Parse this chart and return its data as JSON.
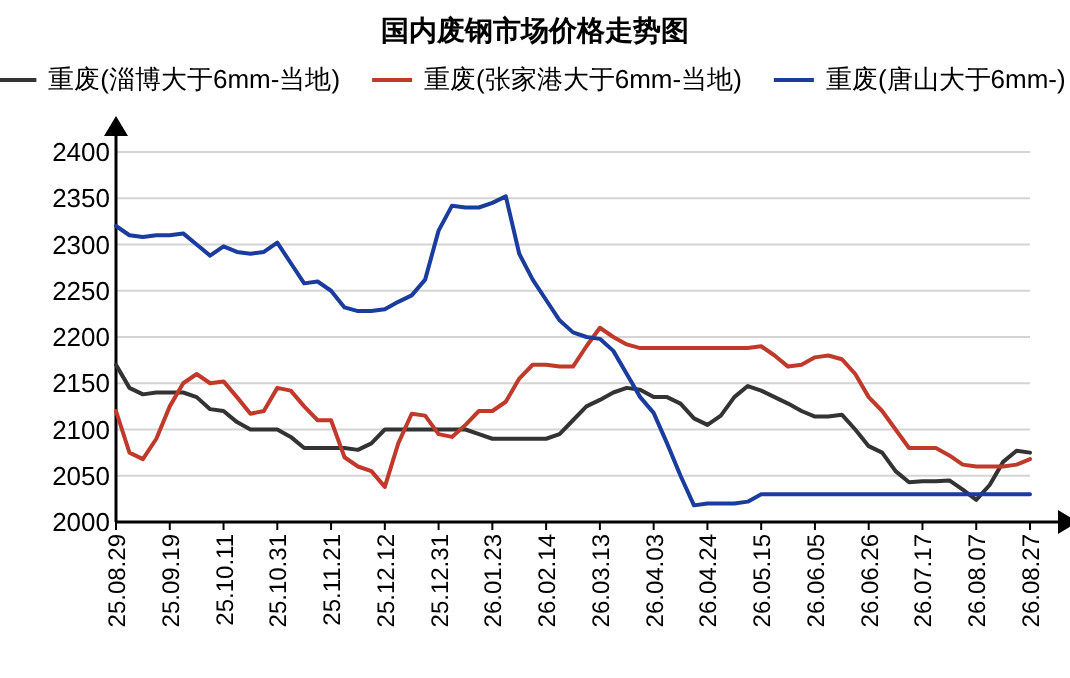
{
  "chart_data": {
    "type": "line",
    "title": "国内废钢市场价格走势图",
    "categories": [
      "25.08.29",
      null,
      null,
      null,
      "25.09.19",
      null,
      null,
      null,
      "25.10.11",
      null,
      null,
      null,
      "25.10.31",
      null,
      null,
      null,
      "25.11.21",
      null,
      null,
      null,
      "25.12.12",
      null,
      null,
      null,
      "25.12.31",
      null,
      null,
      null,
      "26.01.23",
      null,
      null,
      null,
      "26.02.14",
      null,
      null,
      null,
      "26.03.13",
      null,
      null,
      null,
      "26.04.03",
      null,
      null,
      null,
      "26.04.24",
      null,
      null,
      null,
      "26.05.15",
      null,
      null,
      null,
      "26.06.05",
      null,
      null,
      null,
      "26.06.26",
      null,
      null,
      null,
      "26.07.17",
      null,
      null,
      null,
      "26.08.07",
      null,
      null,
      null,
      "26.08.27"
    ],
    "series": [
      {
        "name": "重废(淄博大于6mm-当地)",
        "color": "#333333",
        "values": [
          2170,
          2145,
          2138,
          2140,
          2140,
          2140,
          2135,
          2122,
          2120,
          2108,
          2100,
          2100,
          2100,
          2092,
          2080,
          2080,
          2080,
          2080,
          2078,
          2085,
          2100,
          2100,
          2100,
          2100,
          2100,
          2100,
          2100,
          2095,
          2090,
          2090,
          2090,
          2090,
          2090,
          2095,
          2110,
          2125,
          2132,
          2140,
          2145,
          2143,
          2135,
          2135,
          2128,
          2112,
          2105,
          2115,
          2135,
          2147,
          2142,
          2135,
          2128,
          2120,
          2114,
          2114,
          2116,
          2100,
          2082,
          2075,
          2055,
          2043,
          2044,
          2044,
          2045,
          2035,
          2024,
          2040,
          2065,
          2077,
          2075
        ]
      },
      {
        "name": "重废(张家港大于6mm-当地)",
        "color": "#c0392b",
        "values": [
          2120,
          2075,
          2068,
          2090,
          2125,
          2150,
          2160,
          2150,
          2152,
          2135,
          2117,
          2120,
          2145,
          2142,
          2125,
          2110,
          2110,
          2070,
          2060,
          2055,
          2038,
          2085,
          2117,
          2115,
          2095,
          2092,
          2105,
          2120,
          2120,
          2130,
          2155,
          2170,
          2170,
          2168,
          2168,
          2190,
          2210,
          2200,
          2192,
          2188,
          2188,
          2188,
          2188,
          2188,
          2188,
          2188,
          2188,
          2188,
          2190,
          2180,
          2168,
          2170,
          2178,
          2180,
          2176,
          2160,
          2135,
          2120,
          2100,
          2080,
          2080,
          2080,
          2072,
          2062,
          2060,
          2060,
          2060,
          2062,
          2068
        ]
      },
      {
        "name": "重废(唐山大于6mm-)",
        "color": "#1a3c9c",
        "values": [
          2320,
          2310,
          2308,
          2310,
          2310,
          2312,
          2300,
          2288,
          2298,
          2292,
          2290,
          2292,
          2302,
          2280,
          2258,
          2260,
          2250,
          2232,
          2228,
          2228,
          2230,
          2238,
          2245,
          2262,
          2315,
          2342,
          2340,
          2340,
          2345,
          2352,
          2290,
          2262,
          2240,
          2218,
          2205,
          2200,
          2198,
          2185,
          2160,
          2135,
          2118,
          2085,
          2050,
          2018,
          2020,
          2020,
          2020,
          2022,
          2030,
          2030,
          2030,
          2030,
          2030,
          2030,
          2030,
          2030,
          2030,
          2030,
          2030,
          2030,
          2030,
          2030,
          2030,
          2030,
          2030,
          2030,
          2030,
          2030,
          2030
        ]
      }
    ],
    "ylim": [
      2000,
      2400
    ],
    "yticks": [
      2000,
      2050,
      2100,
      2150,
      2200,
      2250,
      2300,
      2350,
      2400
    ],
    "grid": "y",
    "legend": "top",
    "marker": "none",
    "line_style": "solid"
  }
}
